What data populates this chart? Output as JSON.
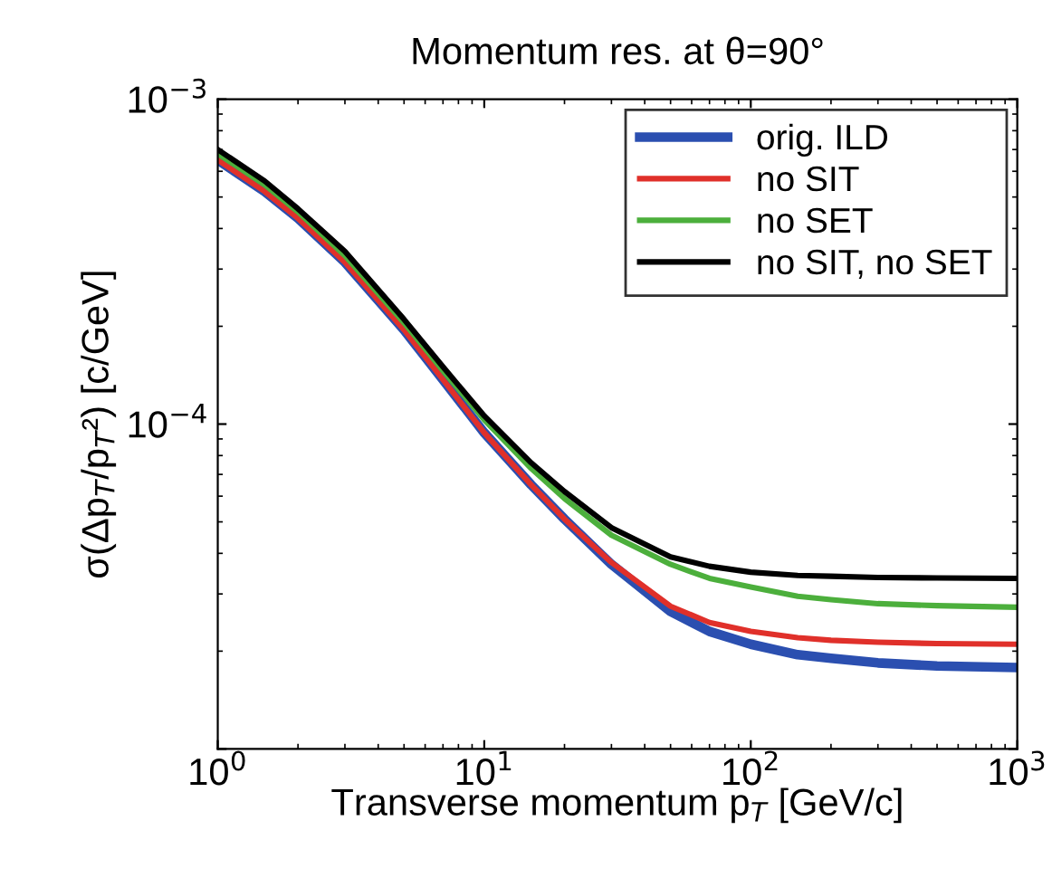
{
  "chart_data": {
    "type": "line",
    "title": "Momentum res. at θ=90°",
    "xlabel": "Transverse momentum p$_{T}$ [GeV/c]",
    "ylabel": "σ(Δp$_{T}$/p$_{T}$²) [c/GeV]",
    "log": "xy",
    "grid": false,
    "legend": "top right",
    "marker": "none",
    "line_style": "solid",
    "x": [
      1,
      1.5,
      2,
      3,
      5,
      7,
      10,
      15,
      20,
      30,
      50,
      70,
      100,
      150,
      200,
      300,
      500,
      1000
    ],
    "xlim": [
      1,
      1000
    ],
    "xticks": [
      {
        "value": 1,
        "label": "10$^{0}$"
      },
      {
        "value": 10,
        "label": "10$^{1}$"
      },
      {
        "value": 100,
        "label": "10$^{2}$"
      },
      {
        "value": 1000,
        "label": "10$^{3}$"
      }
    ],
    "ylim": [
      1e-05,
      0.001
    ],
    "yticks": [
      {
        "value": 1e-05,
        "label": null
      },
      {
        "value": 0.0001,
        "label": "10$^{−4}$"
      },
      {
        "value": 0.001,
        "label": "10$^{−3}$"
      }
    ],
    "series": [
      {
        "name": "orig. ILD",
        "color": "#2b4fb0",
        "values": [
          0.00065,
          0.00052,
          0.00043,
          0.000315,
          0.000195,
          0.000137,
          9.4e-05,
          6.5e-05,
          5.1e-05,
          3.7e-05,
          2.65e-05,
          2.3e-05,
          2.1e-05,
          1.95e-05,
          1.9e-05,
          1.84e-05,
          1.8e-05,
          1.78e-05
        ]
      },
      {
        "name": "no SIT",
        "color": "#e0302a",
        "values": [
          0.00065,
          0.00052,
          0.00043,
          0.000315,
          0.000195,
          0.000137,
          9.4e-05,
          6.5e-05,
          5.1e-05,
          3.75e-05,
          2.75e-05,
          2.45e-05,
          2.3e-05,
          2.2e-05,
          2.16e-05,
          2.13e-05,
          2.11e-05,
          2.1e-05
        ]
      },
      {
        "name": "no SET",
        "color": "#4caf3c",
        "values": [
          0.00068,
          0.000545,
          0.00045,
          0.00033,
          0.000205,
          0.000146,
          0.000103,
          7.3e-05,
          5.9e-05,
          4.55e-05,
          3.7e-05,
          3.35e-05,
          3.15e-05,
          2.95e-05,
          2.88e-05,
          2.8e-05,
          2.76e-05,
          2.73e-05
        ]
      },
      {
        "name": "no SIT, no SET",
        "color": "#000000",
        "values": [
          0.0007,
          0.00056,
          0.00046,
          0.00034,
          0.00021,
          0.00015,
          0.000106,
          7.6e-05,
          6.2e-05,
          4.8e-05,
          3.9e-05,
          3.65e-05,
          3.5e-05,
          3.42e-05,
          3.4e-05,
          3.37e-05,
          3.36e-05,
          3.35e-05
        ]
      }
    ]
  }
}
